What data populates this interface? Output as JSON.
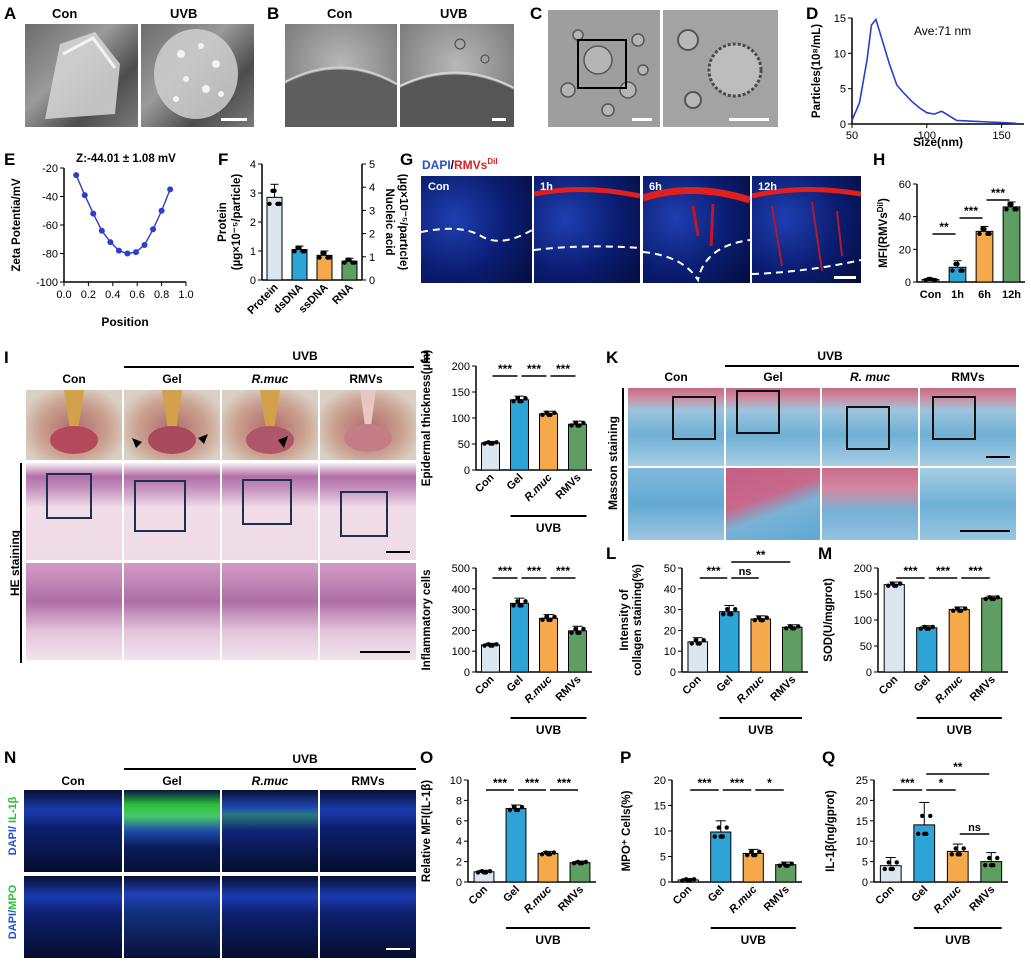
{
  "panels": {
    "A": {
      "label": "A",
      "cond": [
        "Con",
        "UVB"
      ]
    },
    "B": {
      "label": "B",
      "cond": [
        "Con",
        "UVB"
      ]
    },
    "C": {
      "label": "C"
    },
    "D": {
      "label": "D"
    },
    "E": {
      "label": "E"
    },
    "F": {
      "label": "F"
    },
    "G": {
      "label": "G",
      "title_dapi": "DAPI",
      "title_sep": "/",
      "title_rmv": "RMVs",
      "title_sup": "Dil",
      "times": [
        "Con",
        "1h",
        "6h",
        "12h"
      ]
    },
    "H": {
      "label": "H"
    },
    "I": {
      "label": "I",
      "group": "UVB",
      "cols": [
        "Con",
        "Gel",
        "R.muc",
        "RMVs"
      ],
      "row_label": "HE staining"
    },
    "J": {
      "label": "J"
    },
    "K": {
      "label": "K",
      "group": "UVB",
      "cols": [
        "Con",
        "Gel",
        "R. muc",
        "RMVs"
      ],
      "row_label": "Masson staining"
    },
    "L": {
      "label": "L"
    },
    "M": {
      "label": "M"
    },
    "N": {
      "label": "N",
      "group": "UVB",
      "cols": [
        "Con",
        "Gel",
        "R.muc",
        "RMVs"
      ],
      "row1_a": "DAPI/",
      "row1_b": " IL-1β",
      "row2_a": "DAPI/",
      "row2_b": "MPO"
    },
    "O": {
      "label": "O"
    },
    "P": {
      "label": "P"
    },
    "Q": {
      "label": "Q"
    }
  },
  "colors": {
    "con": "#dbe6ef",
    "gel": "#2ea3d6",
    "rmuc": "#f5a94a",
    "rmvs": "#5f9e62",
    "line": "#2b3fc9",
    "dapi": "#1f4fd6",
    "dil": "#e01f1f",
    "green": "#2bbf3b"
  },
  "chart_data": [
    {
      "id": "D",
      "type": "line",
      "title": "",
      "annotation": "Ave:71 nm",
      "xlabel": "Size(nm)",
      "ylabel": "Particles(10⁸/mL)",
      "xlim": [
        50,
        165
      ],
      "ylim": [
        0,
        15
      ],
      "xticks": [
        50,
        100,
        150
      ],
      "yticks": [
        0,
        5,
        10,
        15
      ],
      "x": [
        50,
        55,
        60,
        63,
        66,
        70,
        75,
        80,
        85,
        90,
        95,
        100,
        105,
        110,
        120,
        130,
        140,
        150,
        160
      ],
      "y": [
        0.5,
        3,
        9,
        14,
        14.8,
        12,
        8.5,
        5.5,
        4.3,
        3.2,
        2.3,
        1.6,
        1.4,
        1.8,
        0.5,
        0.4,
        0.3,
        0.2,
        0.1
      ]
    },
    {
      "id": "E",
      "type": "line",
      "annotation": "Z:-44.01 ± 1.08 mV",
      "xlabel": "Position",
      "ylabel": "Zeta Potentia/mV",
      "xlim": [
        0,
        1.0
      ],
      "ylim": [
        -100,
        -20
      ],
      "xticks": [
        0.0,
        0.2,
        0.4,
        0.6,
        0.8,
        1.0
      ],
      "yticks": [
        -100,
        -80,
        -60,
        -40,
        -20
      ],
      "x": [
        0.1,
        0.17,
        0.24,
        0.31,
        0.38,
        0.45,
        0.52,
        0.59,
        0.66,
        0.73,
        0.8,
        0.87
      ],
      "y": [
        -25,
        -39,
        -52,
        -64,
        -72,
        -78,
        -80,
        -79,
        -74,
        -63,
        -50,
        -35
      ]
    },
    {
      "id": "F",
      "type": "bar",
      "categories": [
        "Protein",
        "dsDNA",
        "ssDNA",
        "RNA"
      ],
      "values": [
        2.85,
        1.05,
        0.85,
        0.65
      ],
      "errors": [
        0.45,
        0.12,
        0.15,
        0.1
      ],
      "ylabel": "Protein\n(µg×10⁻⁵/particle)",
      "ylabel_right": "Nucleic acid\n(µg×10⁻⁵/particle)",
      "ylim": [
        0,
        4
      ],
      "ylim_right": [
        0,
        5
      ],
      "yticks": [
        0,
        1,
        2,
        3,
        4
      ],
      "yticks_right": [
        0,
        1,
        2,
        3,
        4,
        5
      ]
    },
    {
      "id": "H",
      "type": "bar",
      "categories": [
        "Con",
        "1h",
        "6h",
        "12h"
      ],
      "values": [
        1.5,
        9,
        31,
        46
      ],
      "errors": [
        0.8,
        4,
        3,
        3
      ],
      "ylabel": "MFI(RMVs",
      "ylabel_sup": "Dil",
      "ylabel_end": ")",
      "ylim": [
        0,
        60
      ],
      "yticks": [
        0,
        20,
        40,
        60
      ],
      "sig": [
        {
          "a": 0,
          "b": 1,
          "t": "**"
        },
        {
          "a": 1,
          "b": 2,
          "t": "***"
        },
        {
          "a": 2,
          "b": 3,
          "t": "***"
        }
      ]
    },
    {
      "id": "J1",
      "type": "bar",
      "categories": [
        "Con",
        "Gel",
        "R.muc",
        "RMVs"
      ],
      "values": [
        52,
        135,
        108,
        88
      ],
      "errors": [
        3,
        7,
        5,
        6
      ],
      "ylabel": "Epidermal thickness(µm)",
      "ylim": [
        0,
        200
      ],
      "yticks": [
        0,
        50,
        100,
        150,
        200
      ],
      "group_label": "UVB",
      "sig": [
        {
          "a": 0,
          "b": 1,
          "t": "***"
        },
        {
          "a": 1,
          "b": 2,
          "t": "***"
        },
        {
          "a": 2,
          "b": 3,
          "t": "***"
        }
      ]
    },
    {
      "id": "J2",
      "type": "bar",
      "categories": [
        "Con",
        "Gel",
        "R.muc",
        "RMVs"
      ],
      "values": [
        130,
        330,
        258,
        198
      ],
      "errors": [
        8,
        25,
        18,
        22
      ],
      "ylabel": "Inflammatory cells",
      "ylim": [
        0,
        500
      ],
      "yticks": [
        0,
        100,
        200,
        300,
        400,
        500
      ],
      "group_label": "UVB",
      "sig": [
        {
          "a": 0,
          "b": 1,
          "t": "***"
        },
        {
          "a": 1,
          "b": 2,
          "t": "***"
        },
        {
          "a": 2,
          "b": 3,
          "t": "***"
        }
      ]
    },
    {
      "id": "L",
      "type": "bar",
      "categories": [
        "Con",
        "Gel",
        "R.muc",
        "RMVs"
      ],
      "values": [
        14.5,
        29,
        25.5,
        21.5
      ],
      "errors": [
        2,
        3,
        1.5,
        1.2
      ],
      "ylabel": "Intensity of\ncollagen staining(%)",
      "ylim": [
        0,
        50
      ],
      "yticks": [
        0,
        10,
        20,
        30,
        40,
        50
      ],
      "group_label": "UVB",
      "sig": [
        {
          "a": 0,
          "b": 1,
          "t": "***"
        },
        {
          "a": 1,
          "b": 2,
          "t": "ns"
        },
        {
          "a": 1,
          "b": 3,
          "t": "**",
          "level": 2
        }
      ]
    },
    {
      "id": "M",
      "type": "bar",
      "categories": [
        "Con",
        "Gel",
        "R.muc",
        "RMVs"
      ],
      "values": [
        168,
        85,
        120,
        142
      ],
      "errors": [
        5,
        4,
        5,
        4
      ],
      "ylabel": "SOD(U/mgprot)",
      "ylim": [
        0,
        200
      ],
      "yticks": [
        0,
        50,
        100,
        150,
        200
      ],
      "group_label": "UVB",
      "sig": [
        {
          "a": 0,
          "b": 1,
          "t": "***"
        },
        {
          "a": 1,
          "b": 2,
          "t": "***"
        },
        {
          "a": 2,
          "b": 3,
          "t": "***"
        }
      ]
    },
    {
      "id": "O",
      "type": "bar",
      "categories": [
        "Con",
        "Gel",
        "R.muc",
        "RMVs"
      ],
      "values": [
        1,
        7.2,
        2.8,
        1.9
      ],
      "errors": [
        0.15,
        0.35,
        0.2,
        0.15
      ],
      "ylabel": "Relative MFI(IL-1β)",
      "ylim": [
        0,
        10
      ],
      "yticks": [
        0,
        2,
        4,
        6,
        8,
        10
      ],
      "group_label": "UVB",
      "sig": [
        {
          "a": 0,
          "b": 1,
          "t": "***"
        },
        {
          "a": 1,
          "b": 2,
          "t": "***"
        },
        {
          "a": 2,
          "b": 3,
          "t": "***"
        }
      ]
    },
    {
      "id": "P",
      "type": "bar",
      "categories": [
        "Con",
        "Gel",
        "R.muc",
        "RMVs"
      ],
      "values": [
        0.4,
        9.8,
        5.6,
        3.4
      ],
      "errors": [
        0.3,
        2.2,
        0.8,
        0.5
      ],
      "ylabel": "MPO⁺ Cells(%)",
      "ylim": [
        0,
        20
      ],
      "yticks": [
        0,
        5,
        10,
        15,
        20
      ],
      "group_label": "UVB",
      "sig": [
        {
          "a": 0,
          "b": 1,
          "t": "***"
        },
        {
          "a": 1,
          "b": 2,
          "t": "***"
        },
        {
          "a": 2,
          "b": 3,
          "t": "*"
        }
      ]
    },
    {
      "id": "Q",
      "type": "bar",
      "categories": [
        "Con",
        "Gel",
        "R.muc",
        "RMVs"
      ],
      "values": [
        4,
        14,
        7.5,
        5
      ],
      "errors": [
        2,
        5.5,
        1.8,
        2.2
      ],
      "ylabel": "IL-1β(ng/gprot)",
      "ylim": [
        0,
        25
      ],
      "yticks": [
        0,
        5,
        10,
        15,
        20,
        25
      ],
      "group_label": "UVB",
      "sig": [
        {
          "a": 0,
          "b": 1,
          "t": "***"
        },
        {
          "a": 1,
          "b": 2,
          "t": "*"
        },
        {
          "a": 1,
          "b": 3,
          "t": "**",
          "level": 2
        },
        {
          "a": 2,
          "b": 3,
          "t": "ns",
          "level": 0,
          "low": true
        }
      ]
    }
  ]
}
